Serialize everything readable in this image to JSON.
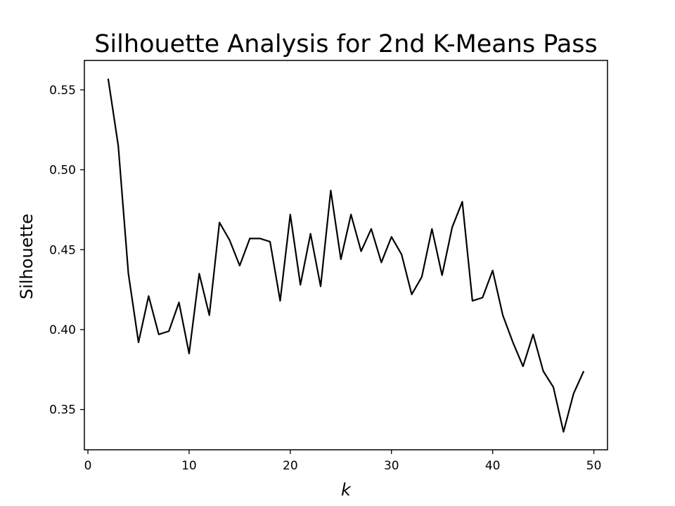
{
  "chart_data": {
    "type": "line",
    "title": "Silhouette Analysis for 2nd K-Means Pass",
    "xlabel": "k",
    "ylabel": "Silhouette",
    "xlim": [
      -0.35,
      51.35
    ],
    "ylim": [
      0.3248,
      0.5684
    ],
    "xticks": [
      0,
      10,
      20,
      30,
      40,
      50
    ],
    "yticks": [
      0.35,
      0.4,
      0.45,
      0.5,
      0.55
    ],
    "xtick_labels": [
      "0",
      "10",
      "20",
      "30",
      "40",
      "50"
    ],
    "ytick_labels": [
      "0.35",
      "0.40",
      "0.45",
      "0.50",
      "0.55"
    ],
    "grid": false,
    "line_color": "#000000",
    "series": [
      {
        "x": [
          2,
          3,
          4,
          5,
          6,
          7,
          8,
          9,
          10,
          11,
          12,
          13,
          14,
          15,
          16,
          17,
          18,
          19,
          20,
          21,
          22,
          23,
          24,
          25,
          26,
          27,
          28,
          29,
          30,
          31,
          32,
          33,
          34,
          35,
          36,
          37,
          38,
          39,
          40,
          41,
          42,
          43,
          44,
          45,
          46,
          47,
          48,
          49
        ],
        "values": [
          0.557,
          0.515,
          0.435,
          0.392,
          0.421,
          0.397,
          0.399,
          0.417,
          0.385,
          0.435,
          0.409,
          0.467,
          0.456,
          0.44,
          0.457,
          0.457,
          0.455,
          0.418,
          0.472,
          0.428,
          0.46,
          0.427,
          0.487,
          0.444,
          0.472,
          0.449,
          0.463,
          0.442,
          0.458,
          0.447,
          0.422,
          0.433,
          0.463,
          0.434,
          0.464,
          0.48,
          0.418,
          0.42,
          0.437,
          0.409,
          0.392,
          0.377,
          0.397,
          0.374,
          0.364,
          0.336,
          0.36,
          0.374
        ]
      }
    ]
  }
}
